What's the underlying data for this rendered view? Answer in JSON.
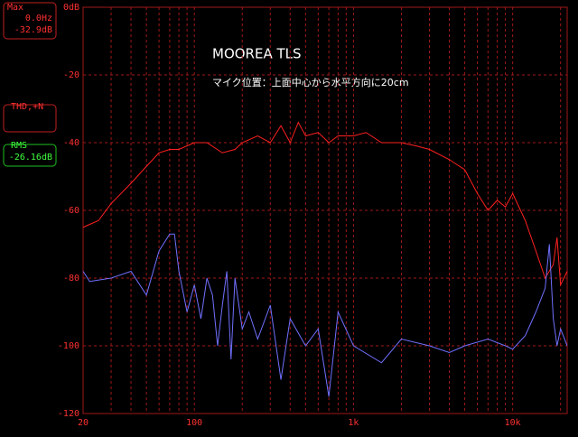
{
  "panels": {
    "max": {
      "label": "Max",
      "freq": "0.0Hz",
      "level": "-32.9dB"
    },
    "thd": {
      "label": "THD,+N"
    },
    "rms": {
      "label": "RMS",
      "level": "-26.16dB"
    }
  },
  "chart_data": {
    "type": "line",
    "title": "MOOREA TLS",
    "subtitle": "マイク位置：上面中心から水平方向に20cm",
    "xscale": "log",
    "grid": true,
    "xlim": [
      20,
      22000
    ],
    "ylim": [
      -120,
      0
    ],
    "xticks": [
      20,
      100,
      {
        "value": 1000,
        "label": "1k"
      },
      {
        "value": 10000,
        "label": "10k"
      }
    ],
    "xminor_ticks": [
      30,
      40,
      50,
      60,
      70,
      80,
      90,
      200,
      300,
      400,
      500,
      600,
      700,
      800,
      900,
      2000,
      3000,
      4000,
      5000,
      6000,
      7000,
      8000,
      9000,
      20000
    ],
    "yticks": [
      {
        "value": 0,
        "label": "0dB"
      },
      -20,
      -40,
      -60,
      -80,
      -100,
      -120
    ],
    "series": [
      {
        "color": "#ff2020",
        "x": [
          20,
          25,
          30,
          40,
          50,
          60,
          70,
          80,
          100,
          120,
          150,
          180,
          200,
          250,
          300,
          350,
          400,
          450,
          500,
          600,
          700,
          800,
          1000,
          1200,
          1500,
          2000,
          2500,
          3000,
          4000,
          5000,
          6000,
          7000,
          8000,
          9000,
          10000,
          12000,
          14000,
          16000,
          18000,
          19000,
          20000,
          22000
        ],
        "values": [
          -65,
          -63,
          -58,
          -52,
          -47,
          -43,
          -42,
          -42,
          -40,
          -40,
          -43,
          -42,
          -40,
          -38,
          -40,
          -35,
          -40,
          -34,
          -38,
          -37,
          -40,
          -38,
          -38,
          -37,
          -40,
          -40,
          -41,
          -42,
          -45,
          -48,
          -55,
          -60,
          -57,
          -59,
          -55,
          -63,
          -72,
          -80,
          -76,
          -68,
          -82,
          -78
        ]
      },
      {
        "color": "#7070ff",
        "x": [
          20,
          22,
          30,
          40,
          50,
          60,
          70,
          75,
          80,
          90,
          100,
          110,
          120,
          130,
          140,
          150,
          160,
          170,
          180,
          200,
          220,
          250,
          300,
          350,
          400,
          500,
          600,
          700,
          800,
          1000,
          1500,
          2000,
          3000,
          4000,
          5000,
          7000,
          9000,
          10000,
          12000,
          14000,
          16000,
          17000,
          18000,
          19000,
          20000,
          22000
        ],
        "values": [
          -78,
          -81,
          -80,
          -78,
          -85,
          -72,
          -67,
          -67,
          -78,
          -90,
          -82,
          -92,
          -80,
          -85,
          -100,
          -88,
          -78,
          -104,
          -80,
          -95,
          -90,
          -98,
          -88,
          -110,
          -92,
          -100,
          -95,
          -115,
          -90,
          -100,
          -105,
          -98,
          -100,
          -102,
          -100,
          -98,
          -100,
          -101,
          -97,
          -90,
          -83,
          -70,
          -92,
          -100,
          -95,
          -100
        ]
      }
    ]
  }
}
